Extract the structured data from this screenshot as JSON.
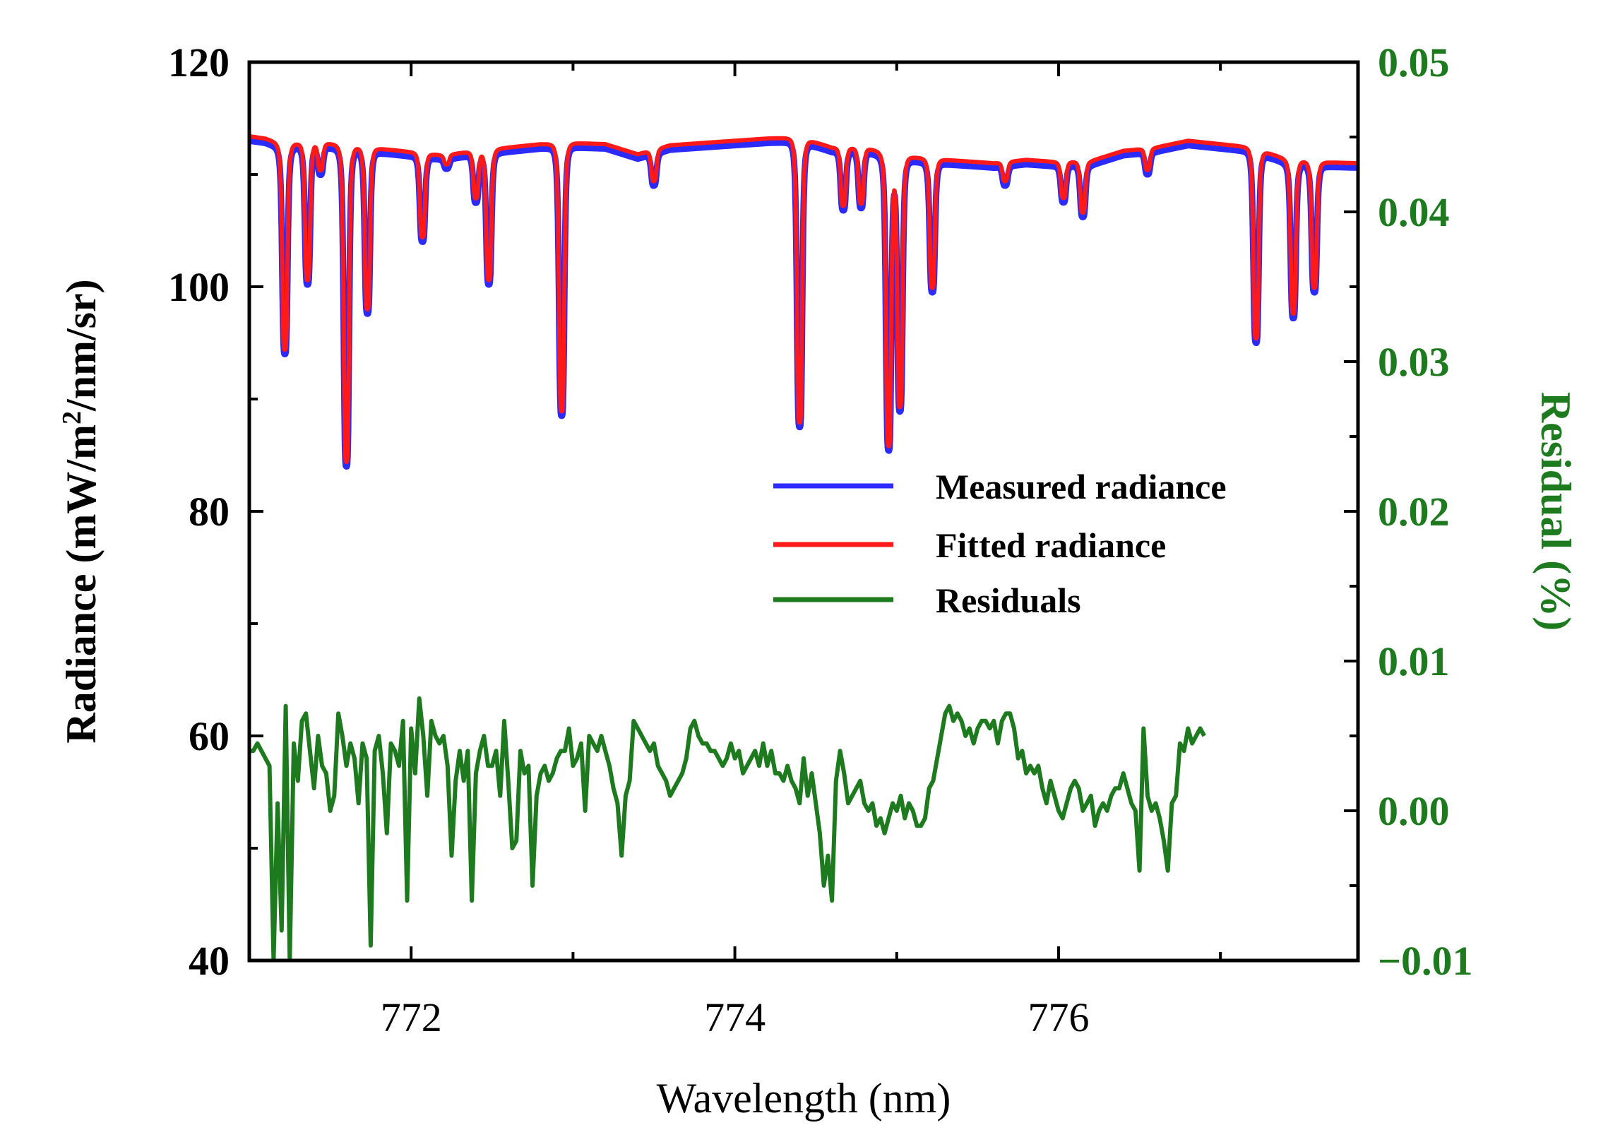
{
  "chart_data": {
    "type": "line",
    "title": "",
    "xlabel": "Wavelength (nm)",
    "ylabel_left": "Radiance (mW/m",
    "ylabel_left_sup": "2",
    "ylabel_left_tail": "/nm/sr)",
    "ylabel_right": "Residual (%)",
    "xlim": [
      771.0,
      777.85
    ],
    "ylim_left": [
      40,
      120
    ],
    "ylim_right": [
      -0.01,
      0.05
    ],
    "x_ticks": [
      772,
      774,
      776
    ],
    "x_tick_labels": [
      "772",
      "774",
      "776"
    ],
    "y_left_ticks": [
      40,
      60,
      80,
      100,
      120
    ],
    "y_left_tick_labels": [
      "40",
      "60",
      "80",
      "100",
      "120"
    ],
    "y_right_ticks": [
      -0.01,
      0.0,
      0.01,
      0.02,
      0.03,
      0.04,
      0.05
    ],
    "y_right_tick_labels": [
      "−0.01",
      "0.00",
      "0.01",
      "0.02",
      "0.03",
      "0.04",
      "0.05"
    ],
    "grid": false,
    "legend_position": "center-right",
    "legend": [
      {
        "label": "Measured radiance",
        "color": "#2b2bff"
      },
      {
        "label": "Fitted radiance",
        "color": "#ff1a1a"
      },
      {
        "label": "Residuals",
        "color": "#1e7a1e"
      }
    ],
    "series": [
      {
        "name": "Measured radiance",
        "axis": "left",
        "color": "#2b2bff",
        "baseline": [
          [
            771.0,
            113.0
          ],
          [
            771.1,
            112.8
          ],
          [
            771.2,
            112.3
          ],
          [
            771.4,
            112.5
          ],
          [
            771.6,
            112.2
          ],
          [
            771.8,
            111.9
          ],
          [
            772.0,
            111.6
          ],
          [
            772.2,
            111.3
          ],
          [
            772.4,
            111.7
          ],
          [
            772.6,
            112.0
          ],
          [
            772.8,
            112.3
          ],
          [
            773.0,
            112.4
          ],
          [
            773.2,
            112.3
          ],
          [
            773.4,
            111.4
          ],
          [
            773.6,
            112.2
          ],
          [
            773.8,
            112.4
          ],
          [
            774.0,
            112.6
          ],
          [
            774.2,
            112.8
          ],
          [
            774.4,
            112.9
          ],
          [
            774.6,
            112.0
          ],
          [
            774.8,
            112.0
          ],
          [
            775.0,
            111.3
          ],
          [
            775.2,
            111.0
          ],
          [
            775.4,
            110.8
          ],
          [
            775.6,
            110.6
          ],
          [
            775.8,
            110.9
          ],
          [
            776.0,
            110.7
          ],
          [
            776.2,
            110.8
          ],
          [
            776.4,
            111.7
          ],
          [
            776.6,
            112.0
          ],
          [
            776.8,
            112.6
          ],
          [
            777.0,
            112.3
          ],
          [
            777.2,
            112.0
          ],
          [
            777.4,
            111.0
          ],
          [
            777.6,
            110.7
          ],
          [
            777.85,
            110.6
          ]
        ],
        "lines": [
          {
            "x": 771.22,
            "min": 94.0
          },
          {
            "x": 771.36,
            "min": 100.2
          },
          {
            "x": 771.44,
            "min": 110.0
          },
          {
            "x": 771.6,
            "min": 84.0
          },
          {
            "x": 771.73,
            "min": 97.6
          },
          {
            "x": 772.07,
            "min": 104.0
          },
          {
            "x": 772.22,
            "min": 110.5
          },
          {
            "x": 772.4,
            "min": 107.5
          },
          {
            "x": 772.48,
            "min": 100.2
          },
          {
            "x": 772.93,
            "min": 88.5
          },
          {
            "x": 773.5,
            "min": 109.0
          },
          {
            "x": 774.4,
            "min": 87.5
          },
          {
            "x": 774.67,
            "min": 106.8
          },
          {
            "x": 774.78,
            "min": 107.0
          },
          {
            "x": 774.95,
            "min": 85.5
          },
          {
            "x": 775.02,
            "min": 89.0
          },
          {
            "x": 775.22,
            "min": 99.5
          },
          {
            "x": 775.67,
            "min": 109.0
          },
          {
            "x": 776.03,
            "min": 107.5
          },
          {
            "x": 776.15,
            "min": 106.2
          },
          {
            "x": 776.55,
            "min": 110.0
          },
          {
            "x": 777.22,
            "min": 95.0
          },
          {
            "x": 777.45,
            "min": 97.2
          },
          {
            "x": 777.58,
            "min": 99.5
          }
        ]
      },
      {
        "name": "Fitted radiance",
        "axis": "left",
        "color": "#ff1a1a",
        "offset": 0.4
      },
      {
        "name": "Residuals",
        "axis": "right",
        "color": "#1e7a1e",
        "x_start": 771.0,
        "x_step": 0.025,
        "values": [
          0.004,
          0.004,
          0.0045,
          0.004,
          0.0035,
          0.003,
          -0.01,
          0.0005,
          -0.008,
          0.007,
          -0.01,
          0.0045,
          0.002,
          0.006,
          0.0065,
          0.004,
          0.0015,
          0.005,
          0.003,
          0.0025,
          0.0,
          0.001,
          0.0065,
          0.005,
          0.003,
          0.0045,
          0.0035,
          0.0005,
          0.0045,
          0.0035,
          -0.009,
          0.004,
          0.005,
          0.0025,
          -0.0015,
          0.0045,
          0.004,
          0.003,
          0.006,
          -0.006,
          0.0055,
          0.0025,
          0.0075,
          0.005,
          0.001,
          0.006,
          0.005,
          0.0045,
          0.005,
          0.003,
          -0.003,
          0.002,
          0.004,
          0.002,
          0.004,
          -0.006,
          0.0025,
          0.004,
          0.005,
          0.003,
          0.003,
          0.004,
          0.001,
          0.006,
          0.002,
          -0.0025,
          -0.002,
          0.004,
          0.0025,
          0.003,
          -0.005,
          0.001,
          0.0025,
          0.003,
          0.002,
          0.0025,
          0.0035,
          0.004,
          0.004,
          0.0055,
          0.003,
          0.0035,
          0.0045,
          0.0,
          0.005,
          0.0045,
          0.004,
          0.005,
          0.004,
          0.003,
          0.0015,
          0.0005,
          -0.003,
          0.001,
          0.002,
          0.006,
          0.0055,
          0.005,
          0.0045,
          0.004,
          0.0045,
          0.003,
          0.0025,
          0.002,
          0.001,
          0.0015,
          0.002,
          0.0025,
          0.0035,
          0.0055,
          0.006,
          0.005,
          0.0045,
          0.0045,
          0.004,
          0.004,
          0.0035,
          0.003,
          0.0035,
          0.0045,
          0.0035,
          0.004,
          0.0025,
          0.003,
          0.0035,
          0.004,
          0.003,
          0.0045,
          0.003,
          0.004,
          0.0025,
          0.0025,
          0.002,
          0.003,
          0.002,
          0.0015,
          0.0005,
          0.0035,
          0.001,
          0.0025,
          0.0005,
          -0.0015,
          -0.005,
          -0.003,
          -0.006,
          0.002,
          0.004,
          0.0025,
          0.0005,
          0.001,
          0.0015,
          0.002,
          0.0005,
          0.0,
          0.0005,
          -0.001,
          -0.0005,
          -0.0015,
          -0.0005,
          0.0005,
          0.0,
          0.001,
          -0.0005,
          0.0005,
          0.0,
          -0.001,
          -0.001,
          -0.0005,
          0.0015,
          0.002,
          0.0035,
          0.005,
          0.0065,
          0.007,
          0.006,
          0.0065,
          0.006,
          0.005,
          0.0055,
          0.0045,
          0.0055,
          0.006,
          0.006,
          0.0055,
          0.006,
          0.0045,
          0.006,
          0.0065,
          0.0065,
          0.0055,
          0.0035,
          0.004,
          0.0025,
          0.003,
          0.0025,
          0.003,
          0.0015,
          0.0005,
          0.002,
          0.001,
          0.0,
          -0.0005,
          0.0005,
          0.0015,
          0.002,
          0.0015,
          0.0,
          0.0005,
          0.001,
          -0.001,
          0.0,
          0.0005,
          0.0,
          0.001,
          0.0015,
          0.0015,
          0.0025,
          0.0015,
          0.0005,
          0.0,
          -0.004,
          0.0055,
          0.001,
          0.0,
          0.0005,
          -0.0005,
          -0.002,
          -0.004,
          0.0005,
          0.001,
          0.0045,
          0.004,
          0.0055,
          0.0045,
          0.005,
          0.0055,
          0.005
        ]
      }
    ]
  }
}
